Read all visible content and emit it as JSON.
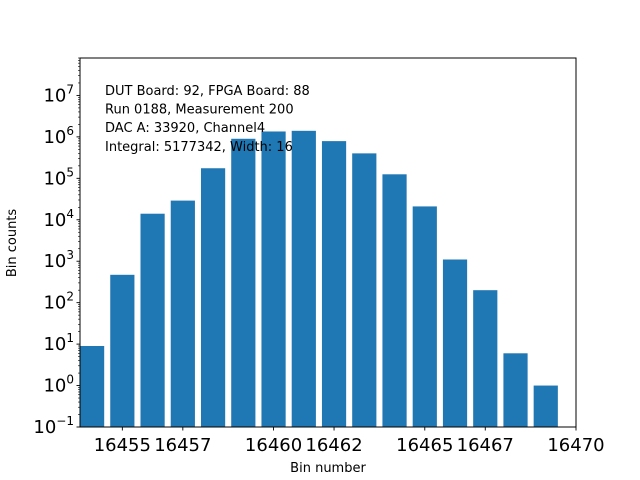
{
  "chart_data": {
    "type": "bar",
    "scale_y": "log",
    "xlabel": "Bin number",
    "ylabel": "Bin counts",
    "xlim": [
      16453.6,
      16470.0
    ],
    "ylim": [
      0.1,
      80000000
    ],
    "x_tick_labels": [
      {
        "value": 16455,
        "label": "16455"
      },
      {
        "value": 16457,
        "label": "16457"
      },
      {
        "value": 16460,
        "label": "16460"
      },
      {
        "value": 16462,
        "label": "16462"
      },
      {
        "value": 16465,
        "label": "16465"
      },
      {
        "value": 16467,
        "label": "16467"
      },
      {
        "value": 16470,
        "label": "16470"
      }
    ],
    "y_tick_labels": [
      {
        "exp": -1,
        "base": "10",
        "sup": "−1"
      },
      {
        "exp": 0,
        "base": "10",
        "sup": "0"
      },
      {
        "exp": 1,
        "base": "10",
        "sup": "1"
      },
      {
        "exp": 2,
        "base": "10",
        "sup": "2"
      },
      {
        "exp": 3,
        "base": "10",
        "sup": "3"
      },
      {
        "exp": 4,
        "base": "10",
        "sup": "4"
      },
      {
        "exp": 5,
        "base": "10",
        "sup": "5"
      },
      {
        "exp": 6,
        "base": "10",
        "sup": "6"
      },
      {
        "exp": 7,
        "base": "10",
        "sup": "7"
      }
    ],
    "bars": [
      {
        "x": 16454,
        "value": 9
      },
      {
        "x": 16455,
        "value": 470
      },
      {
        "x": 16456,
        "value": 14000
      },
      {
        "x": 16457,
        "value": 29000
      },
      {
        "x": 16458,
        "value": 175000
      },
      {
        "x": 16459,
        "value": 900000
      },
      {
        "x": 16460,
        "value": 1350000
      },
      {
        "x": 16461,
        "value": 1400000
      },
      {
        "x": 16462,
        "value": 790000
      },
      {
        "x": 16463,
        "value": 400000
      },
      {
        "x": 16464,
        "value": 125000
      },
      {
        "x": 16465,
        "value": 21000
      },
      {
        "x": 16466,
        "value": 1100
      },
      {
        "x": 16467,
        "value": 200
      },
      {
        "x": 16468,
        "value": 6
      },
      {
        "x": 16469,
        "value": 1
      }
    ],
    "bar_width": 0.8,
    "bar_color": "#1f77b4",
    "annotations": [
      "DUT Board: 92, FPGA Board: 88",
      "Run 0188, Measurement 200",
      "DAC A: 33920, Channel4",
      "Integral: 5177342, Width: 16"
    ],
    "grid": false,
    "legend": "none"
  }
}
